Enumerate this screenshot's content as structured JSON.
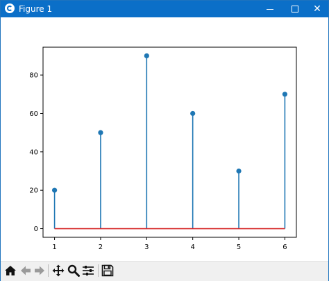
{
  "window": {
    "title": "Figure 1",
    "icon": "matplotlib-logo-icon",
    "controls": [
      "minimize-icon",
      "maximize-icon",
      "close-icon"
    ]
  },
  "toolbar": {
    "buttons": [
      {
        "name": "home-button",
        "icon": "home-icon"
      },
      {
        "name": "back-button",
        "icon": "arrow-left-icon"
      },
      {
        "name": "forward-button",
        "icon": "arrow-right-icon"
      },
      {
        "name": "pan-button",
        "icon": "move-arrows-icon"
      },
      {
        "name": "zoom-button",
        "icon": "magnifier-icon"
      },
      {
        "name": "configure-subplots-button",
        "icon": "sliders-icon"
      },
      {
        "name": "save-button",
        "icon": "floppy-disk-icon"
      }
    ]
  },
  "chart_data": {
    "type": "stem",
    "x": [
      1,
      2,
      3,
      4,
      5,
      6
    ],
    "values": [
      20,
      50,
      90,
      60,
      30,
      70
    ],
    "xticks": [
      "1",
      "2",
      "3",
      "4",
      "5",
      "6"
    ],
    "yticks": [
      "0",
      "20",
      "40",
      "60",
      "80"
    ],
    "xlim": [
      0.75,
      6.25
    ],
    "ylim": [
      -4.5,
      94.5
    ],
    "baseline": 0,
    "colors": {
      "stem": "#1f77b4",
      "marker": "#1f77b4",
      "baseline": "#d62728"
    },
    "grid": false,
    "title": "",
    "xlabel": "",
    "ylabel": ""
  }
}
